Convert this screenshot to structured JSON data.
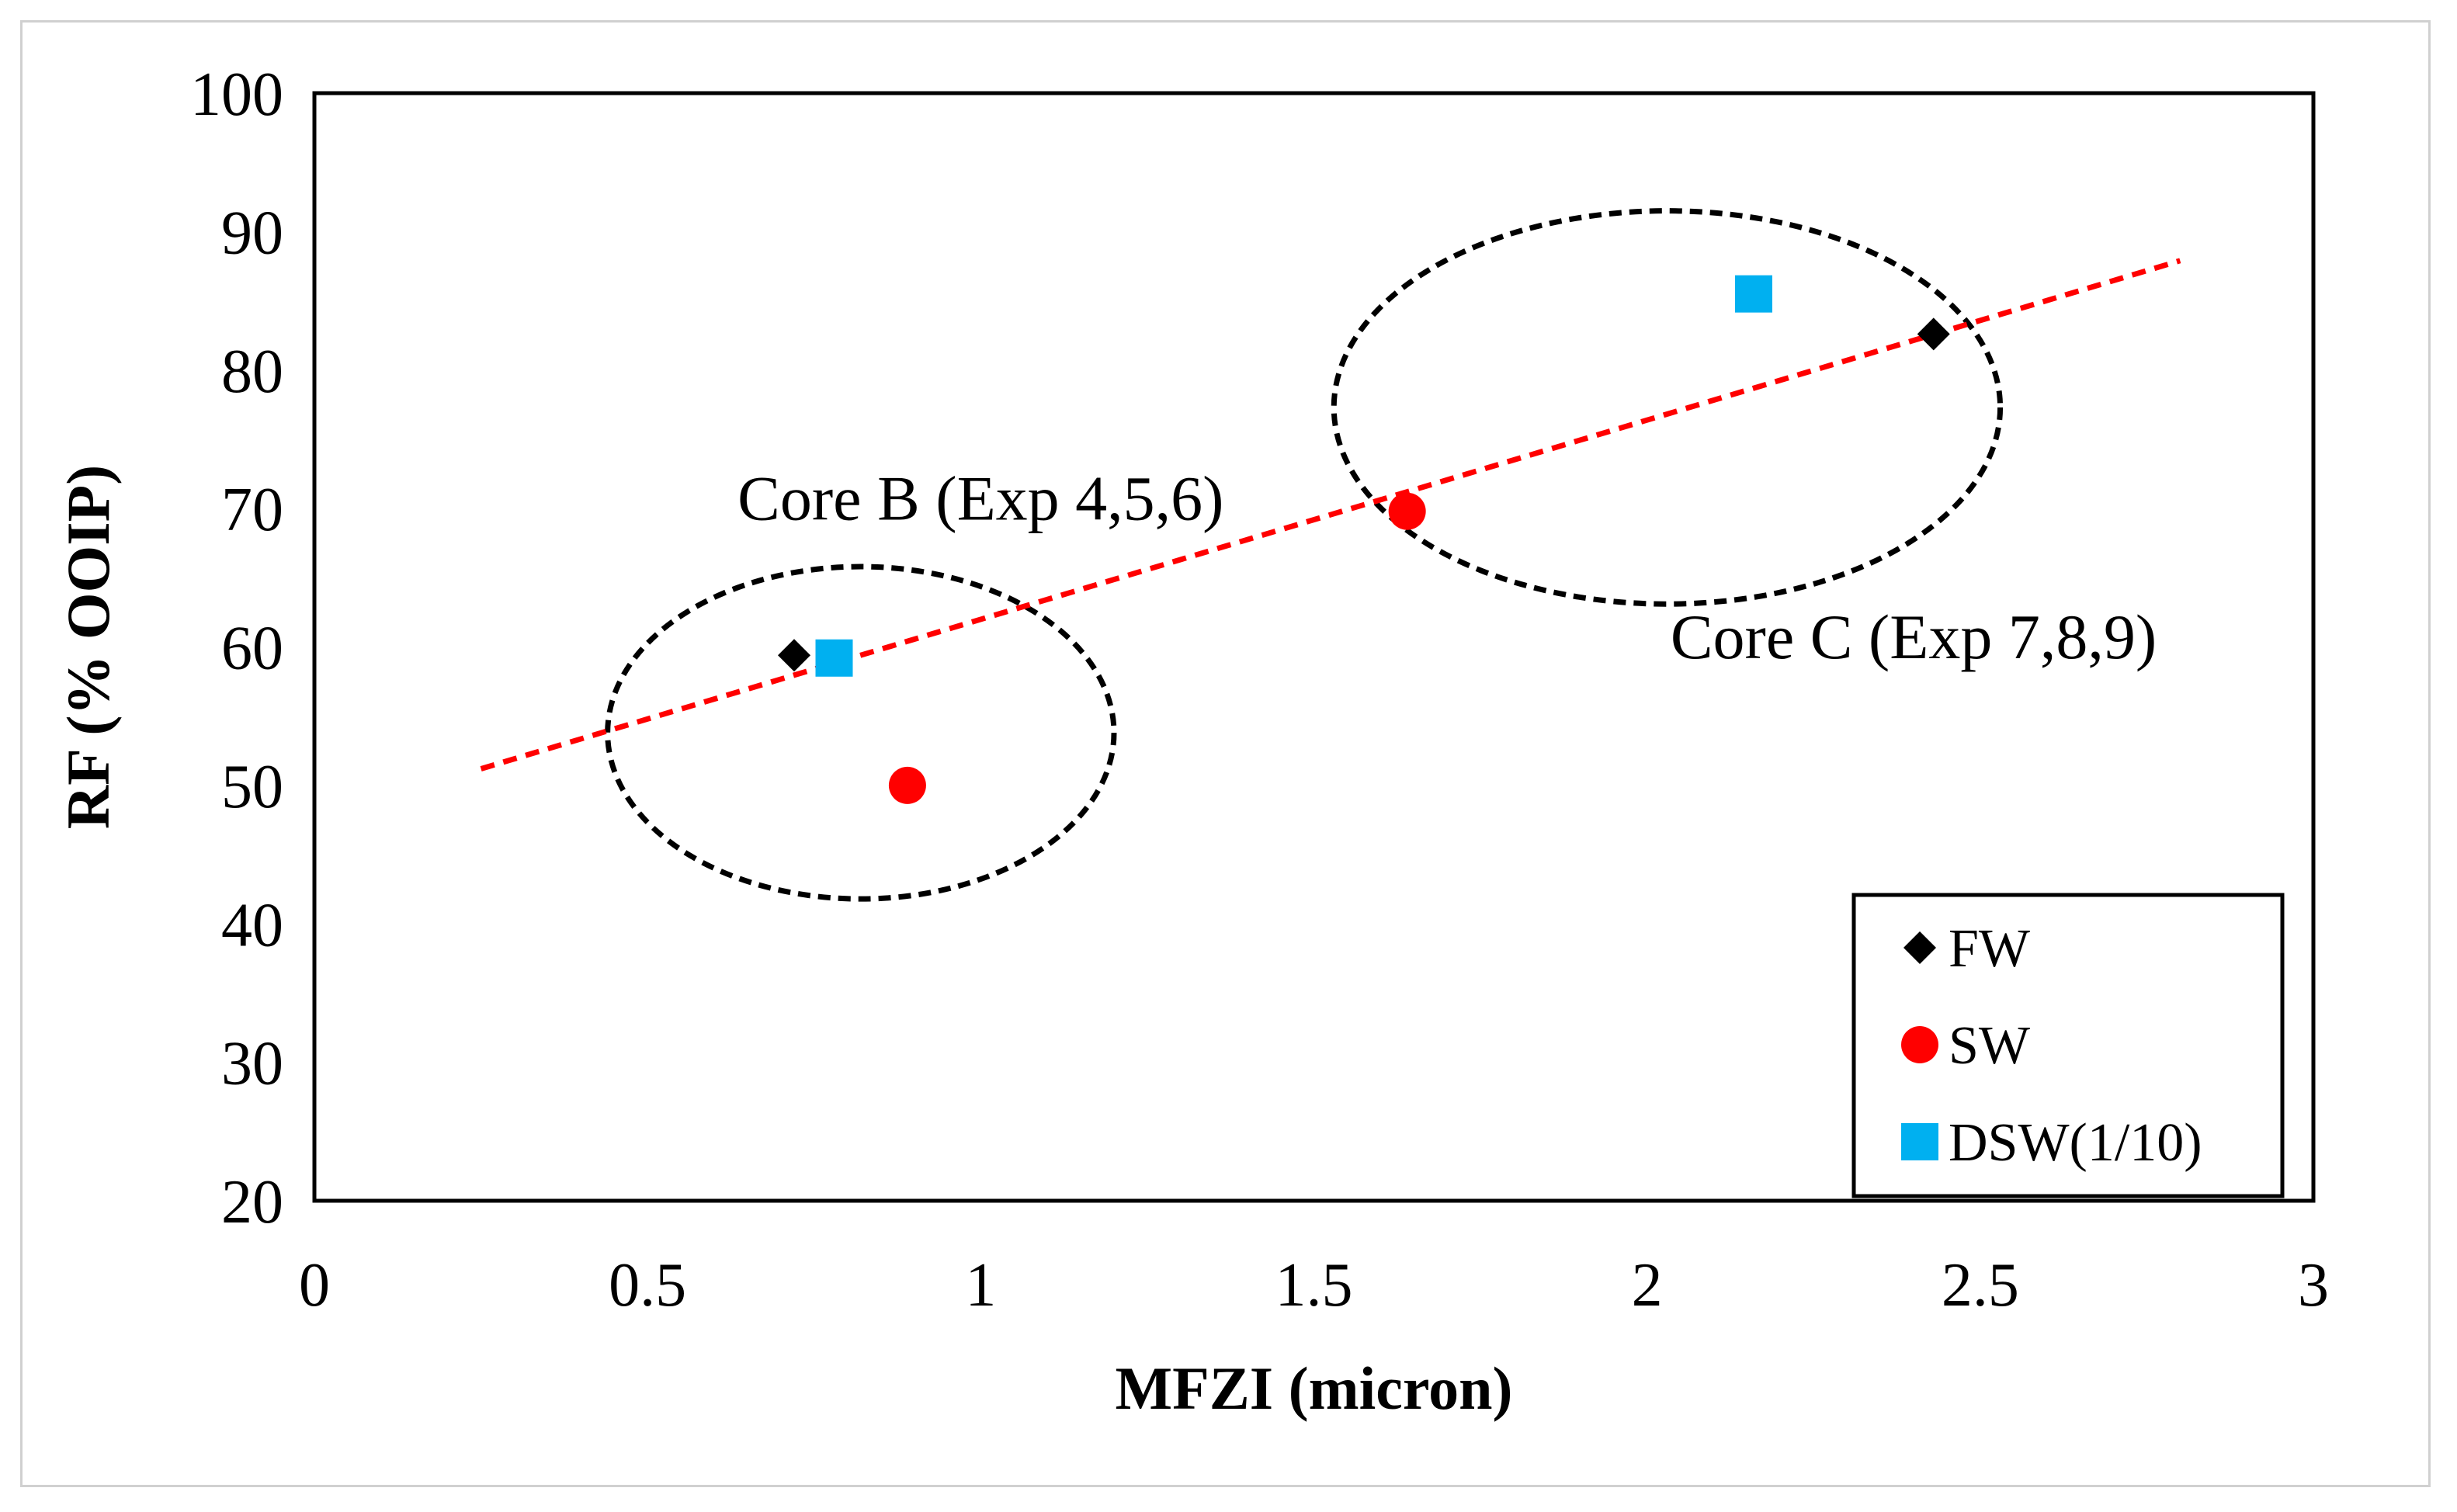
{
  "chart_data": {
    "type": "scatter",
    "title": "",
    "xlabel": "MFZI (micron)",
    "ylabel": "RF (% OOIP)",
    "xlim": [
      0,
      3
    ],
    "ylim": [
      20,
      100
    ],
    "xticks": [
      0,
      0.5,
      1,
      1.5,
      2,
      2.5,
      3
    ],
    "xtick_labels": [
      "0",
      "0.5",
      "1",
      "1.5",
      "2",
      "2.5",
      "3"
    ],
    "yticks": [
      20,
      30,
      40,
      50,
      60,
      70,
      80,
      90,
      100
    ],
    "ytick_labels": [
      "20",
      "30",
      "40",
      "50",
      "60",
      "70",
      "80",
      "90",
      "100"
    ],
    "grid": false,
    "legend_position": "bottom-right",
    "series": [
      {
        "name": "FW",
        "marker": "diamond",
        "color": "#000000",
        "points": [
          {
            "x": 0.72,
            "y": 59.4
          },
          {
            "x": 2.43,
            "y": 82.6
          }
        ]
      },
      {
        "name": "SW",
        "marker": "circle",
        "color": "#ff0000",
        "points": [
          {
            "x": 0.89,
            "y": 50.0
          },
          {
            "x": 1.64,
            "y": 69.8
          }
        ]
      },
      {
        "name": "DSW(1/10)",
        "marker": "square",
        "color": "#00b0f0",
        "points": [
          {
            "x": 0.78,
            "y": 59.2
          },
          {
            "x": 2.16,
            "y": 85.5
          }
        ]
      }
    ],
    "trendline": {
      "style": "dashed",
      "color": "#ff0000",
      "from": {
        "x": 0.25,
        "y": 51.2
      },
      "to": {
        "x": 2.8,
        "y": 87.9
      }
    },
    "groups": [
      {
        "label": "Core B (Exp 4,5,6)",
        "center": {
          "x": 0.82,
          "y": 53.8
        },
        "rx": 0.38,
        "ry": 12.0
      },
      {
        "label": "Core C (Exp 7,8,9)",
        "center": {
          "x": 2.03,
          "y": 77.3
        },
        "rx": 0.5,
        "ry": 14.2
      }
    ]
  }
}
